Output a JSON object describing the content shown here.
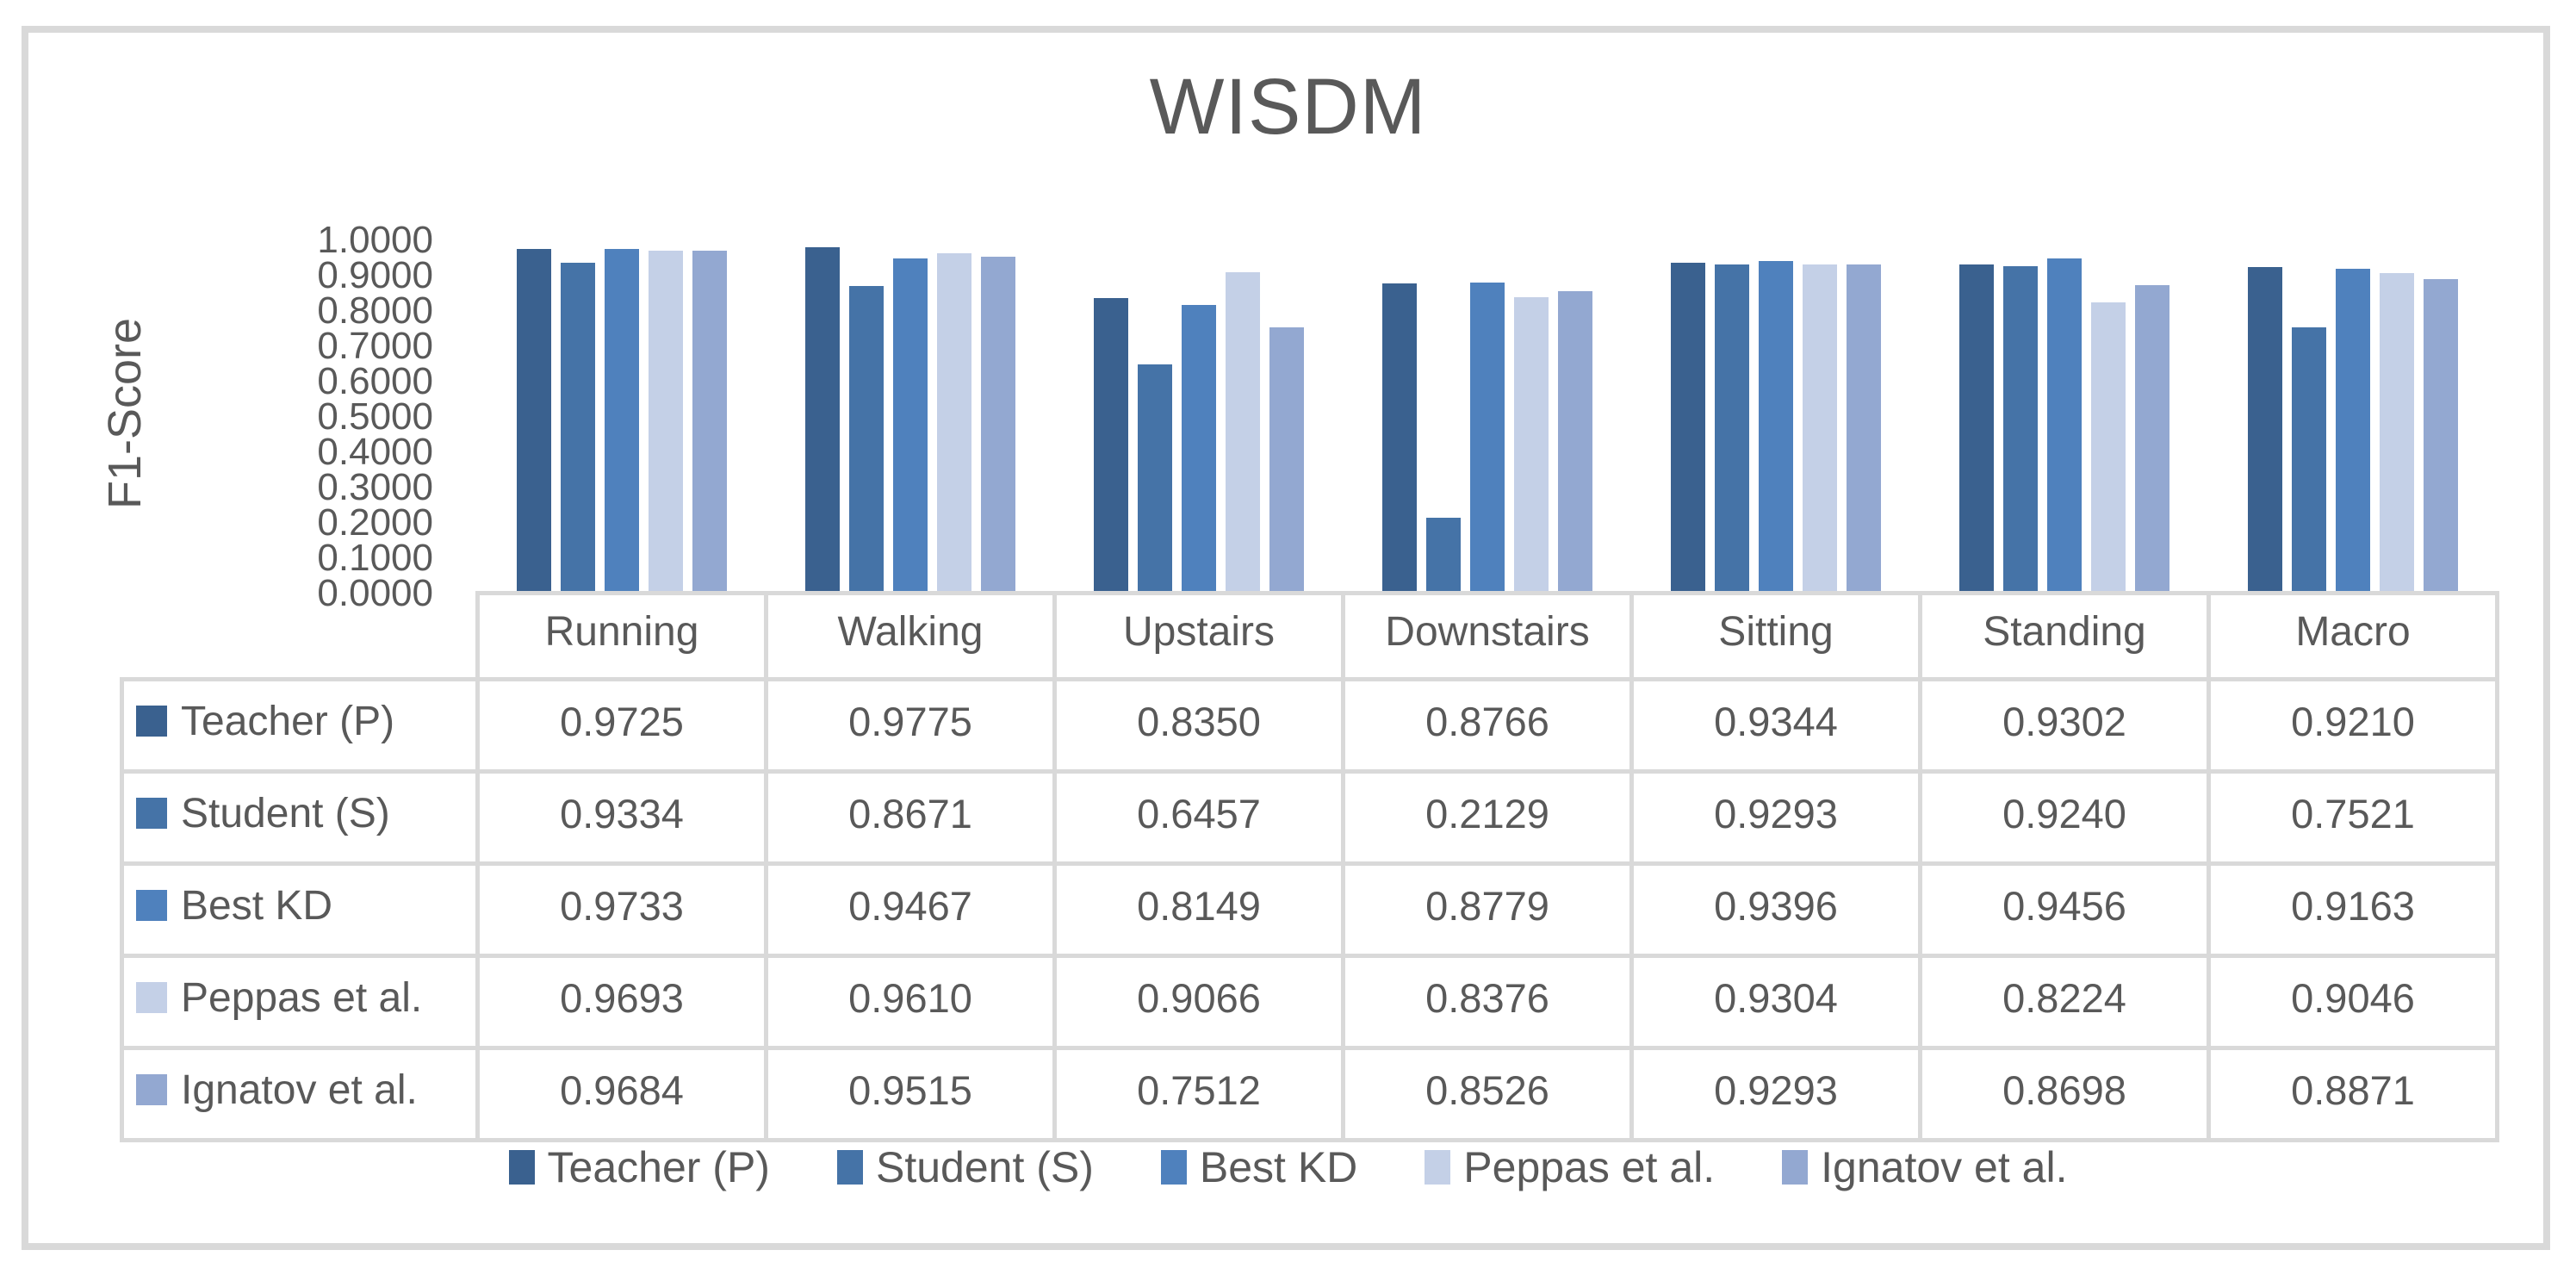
{
  "title": "WISDM",
  "colors": {
    "text_gray": "#595959",
    "border_gray": "#d9d9d9",
    "background": "#ffffff"
  },
  "y_axis": {
    "label": "F1-Score",
    "tick_labels": [
      "1.0000",
      "0.9000",
      "0.8000",
      "0.7000",
      "0.6000",
      "0.5000",
      "0.4000",
      "0.3000",
      "0.2000",
      "0.1000",
      "0.0000"
    ]
  },
  "chart_data": {
    "type": "bar",
    "title": "WISDM",
    "xlabel": "",
    "ylabel": "F1-Score",
    "ylim": [
      0,
      1
    ],
    "grid": false,
    "legend_position": "bottom",
    "categories": [
      "Running",
      "Walking",
      "Upstairs",
      "Downstairs",
      "Sitting",
      "Standing",
      "Macro"
    ],
    "series": [
      {
        "name": "Teacher (P)",
        "color": "#3a618f",
        "values": [
          0.9725,
          0.9775,
          0.835,
          0.8766,
          0.9344,
          0.9302,
          0.921
        ]
      },
      {
        "name": "Student (S)",
        "color": "#4573a7",
        "values": [
          0.9334,
          0.8671,
          0.6457,
          0.2129,
          0.9293,
          0.924,
          0.7521
        ]
      },
      {
        "name": "Best KD",
        "color": "#4f81bd",
        "values": [
          0.9733,
          0.9467,
          0.8149,
          0.8779,
          0.9396,
          0.9456,
          0.9163
        ]
      },
      {
        "name": "Peppas et al.",
        "color": "#c4d0e7",
        "values": [
          0.9693,
          0.961,
          0.9066,
          0.8376,
          0.9304,
          0.8224,
          0.9046
        ]
      },
      {
        "name": "Ignatov et al.",
        "color": "#93a8d1",
        "values": [
          0.9684,
          0.9515,
          0.7512,
          0.8526,
          0.9293,
          0.8698,
          0.8871
        ]
      }
    ]
  },
  "table": {
    "corner_label": "",
    "columns": [
      "Running",
      "Walking",
      "Upstairs",
      "Downstairs",
      "Sitting",
      "Standing",
      "Macro"
    ],
    "rows": [
      {
        "label": "Teacher (P)",
        "values": [
          "0.9725",
          "0.9775",
          "0.8350",
          "0.8766",
          "0.9344",
          "0.9302",
          "0.9210"
        ]
      },
      {
        "label": "Student (S)",
        "values": [
          "0.9334",
          "0.8671",
          "0.6457",
          "0.2129",
          "0.9293",
          "0.9240",
          "0.7521"
        ]
      },
      {
        "label": "Best KD",
        "values": [
          "0.9733",
          "0.9467",
          "0.8149",
          "0.8779",
          "0.9396",
          "0.9456",
          "0.9163"
        ]
      },
      {
        "label": "Peppas et al.",
        "values": [
          "0.9693",
          "0.9610",
          "0.9066",
          "0.8376",
          "0.9304",
          "0.8224",
          "0.9046"
        ]
      },
      {
        "label": "Ignatov et al.",
        "values": [
          "0.9684",
          "0.9515",
          "0.7512",
          "0.8526",
          "0.9293",
          "0.8698",
          "0.8871"
        ]
      }
    ]
  },
  "legend": {
    "entries": [
      "Teacher (P)",
      "Student (S)",
      "Best KD",
      "Peppas et al.",
      "Ignatov et al."
    ]
  }
}
